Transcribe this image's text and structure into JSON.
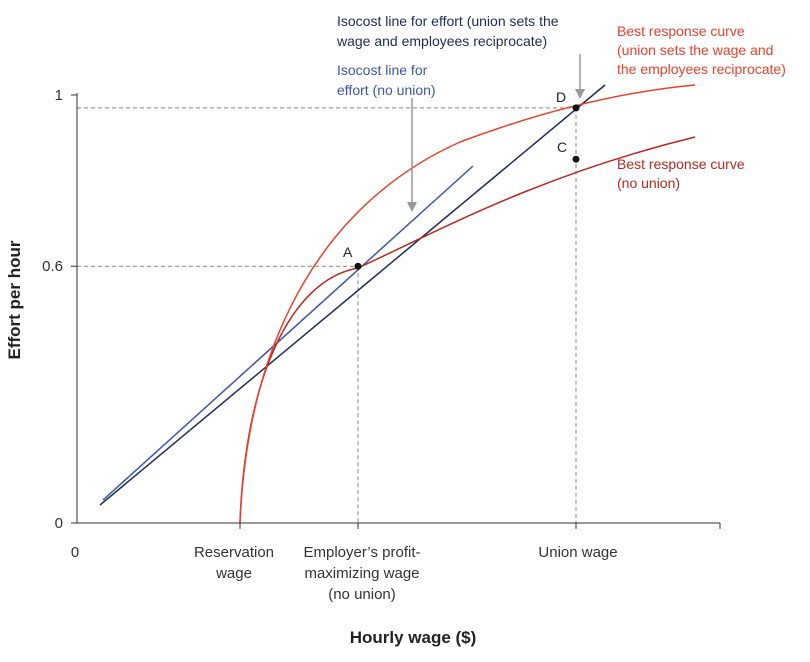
{
  "chart_data": {
    "type": "line",
    "xlabel": "Hourly wage ($)",
    "ylabel": "Effort per hour",
    "ylim": [
      0,
      1
    ],
    "x_tick_labels": [
      {
        "id": "origin",
        "label": "0"
      },
      {
        "id": "reservation",
        "label": "Reservation\nwage"
      },
      {
        "id": "employer",
        "label": "Employer’s profit-\nmaximizing wage\n(no union)"
      },
      {
        "id": "union",
        "label": "Union wage"
      }
    ],
    "y_ticks": [
      {
        "value": 0,
        "label": "0"
      },
      {
        "value": 0.6,
        "label": "0.6"
      },
      {
        "value": 1,
        "label": "1"
      }
    ],
    "series": [
      {
        "id": "br_union",
        "name": "Best response curve\n(union sets the wage and\nthe employees reciprocate)",
        "color": "#e8412c",
        "kind": "curve"
      },
      {
        "id": "br_nounion",
        "name": "Best response curve\n(no union)",
        "color": "#b5291f",
        "kind": "curve"
      },
      {
        "id": "iso_nounion",
        "name": "Isocost line for\neffort (no union)",
        "color": "#3b56a8",
        "kind": "line"
      },
      {
        "id": "iso_union",
        "name": "Isocost line for effort (union sets the\nwage and employees reciprocate)",
        "color": "#1b2a5c",
        "kind": "line"
      }
    ],
    "points": [
      {
        "id": "A",
        "label": "A",
        "at": "employer",
        "y": 0.6
      },
      {
        "id": "C",
        "label": "C",
        "at": "union",
        "y": 0.85
      },
      {
        "id": "D",
        "label": "D",
        "at": "union",
        "y": 0.97
      }
    ],
    "guide_color": "#888888",
    "axis_color": "#333333"
  }
}
